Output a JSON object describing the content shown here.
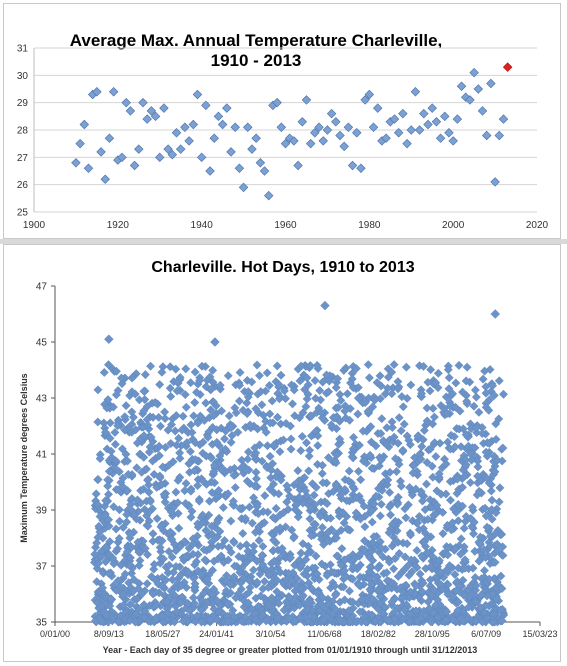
{
  "chart_data": [
    {
      "type": "scatter",
      "title_line1": "Average Max. Annual Temperature Charleville,",
      "title_line2": "1910 - 2013",
      "xlim": [
        1900,
        2020
      ],
      "ylim": [
        25,
        31
      ],
      "xticks": [
        "1900",
        "1920",
        "1940",
        "1960",
        "1980",
        "2000",
        "2020"
      ],
      "yticks": [
        "25",
        "26",
        "27",
        "28",
        "29",
        "30",
        "31"
      ],
      "grid": true,
      "marker_color": "#7aa0d4",
      "highlight_color": "#e0201b",
      "highlight_index": 103,
      "x": [
        1910,
        1911,
        1912,
        1913,
        1914,
        1915,
        1916,
        1917,
        1918,
        1919,
        1920,
        1921,
        1922,
        1923,
        1924,
        1925,
        1926,
        1927,
        1928,
        1929,
        1930,
        1931,
        1932,
        1933,
        1934,
        1935,
        1936,
        1937,
        1938,
        1939,
        1940,
        1941,
        1942,
        1943,
        1944,
        1945,
        1946,
        1947,
        1948,
        1949,
        1950,
        1951,
        1952,
        1953,
        1954,
        1955,
        1956,
        1957,
        1958,
        1959,
        1960,
        1961,
        1962,
        1963,
        1964,
        1965,
        1966,
        1967,
        1968,
        1969,
        1970,
        1971,
        1972,
        1973,
        1974,
        1975,
        1976,
        1977,
        1978,
        1979,
        1980,
        1981,
        1982,
        1983,
        1984,
        1985,
        1986,
        1987,
        1988,
        1989,
        1990,
        1991,
        1992,
        1993,
        1994,
        1995,
        1996,
        1997,
        1998,
        1999,
        2000,
        2001,
        2002,
        2003,
        2004,
        2005,
        2006,
        2007,
        2008,
        2009,
        2010,
        2011,
        2012,
        2013
      ],
      "y": [
        26.8,
        27.5,
        28.2,
        26.6,
        29.3,
        29.4,
        27.2,
        26.2,
        27.7,
        29.4,
        26.9,
        27.0,
        29.0,
        28.7,
        26.7,
        27.3,
        29.0,
        28.4,
        28.7,
        28.5,
        27.0,
        28.8,
        27.3,
        27.1,
        27.9,
        27.3,
        28.1,
        27.6,
        28.2,
        29.3,
        27.0,
        28.9,
        26.5,
        27.7,
        28.5,
        28.2,
        28.8,
        27.2,
        28.1,
        26.6,
        25.9,
        28.1,
        27.3,
        27.7,
        26.8,
        26.5,
        25.6,
        28.9,
        29.0,
        28.1,
        27.5,
        27.7,
        27.6,
        26.7,
        28.3,
        29.1,
        27.5,
        27.9,
        28.1,
        27.6,
        28.0,
        28.6,
        28.3,
        27.8,
        27.4,
        28.1,
        26.7,
        27.9,
        26.6,
        29.1,
        29.3,
        28.1,
        28.8,
        27.6,
        27.7,
        28.3,
        28.4,
        27.9,
        28.6,
        27.5,
        28.0,
        29.4,
        28.0,
        28.6,
        28.2,
        28.8,
        28.3,
        27.7,
        28.5,
        27.9,
        27.6,
        28.4,
        29.6,
        29.2,
        29.1,
        30.1,
        29.5,
        28.7,
        27.8,
        29.7,
        26.1,
        27.8,
        28.4,
        30.3
      ]
    },
    {
      "type": "scatter",
      "title": "Charleville. Hot Days, 1910 to 2013",
      "ylabel": "Maximum Temperature degrees Celsius",
      "xlabel": "Year - Each day of 35 degree or greater plotted from 01/01/1910 through until 31/12/2013",
      "ylim": [
        35,
        47
      ],
      "yticks": [
        "35",
        "37",
        "39",
        "41",
        "43",
        "45",
        "47"
      ],
      "xticks": [
        "0/01/00",
        "8/09/13",
        "18/05/27",
        "24/01/41",
        "3/10/54",
        "11/06/68",
        "18/02/82",
        "28/10/95",
        "6/07/09",
        "15/03/23"
      ],
      "xlim_days": [
        0,
        45000
      ],
      "xtick_days": [
        0,
        5000,
        10000,
        15000,
        20000,
        25000,
        30000,
        35000,
        40000,
        45000
      ],
      "range_days": [
        3654,
        41639
      ],
      "marker_color": "#6b93c8",
      "notable_points": [
        {
          "day": 5000,
          "value": 45.1
        },
        {
          "day": 14840,
          "value": 45.0
        },
        {
          "day": 25050,
          "value": 46.3
        },
        {
          "day": 40850,
          "value": 46.0
        }
      ]
    }
  ]
}
